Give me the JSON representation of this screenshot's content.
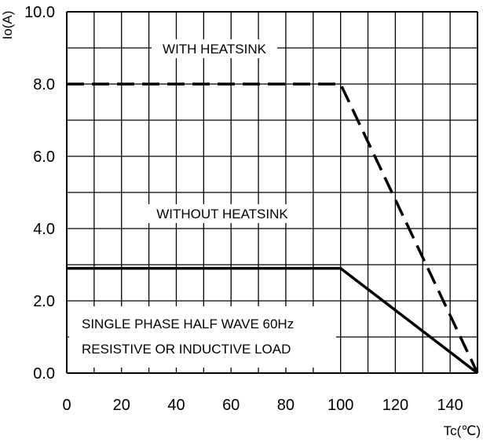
{
  "chart_data": {
    "type": "line",
    "xlabel": "Tc(℃)",
    "ylabel": "Io(A)",
    "xlim": [
      0,
      150
    ],
    "ylim": [
      0,
      10
    ],
    "x_ticks": [
      "0",
      "20",
      "40",
      "60",
      "80",
      "100",
      "120",
      "140"
    ],
    "y_ticks": [
      "0.0",
      "2.0",
      "4.0",
      "6.0",
      "8.0",
      "10.0"
    ],
    "grid": true,
    "series": [
      {
        "name": "WITH HEATSINK",
        "style": "dashed",
        "x": [
          0,
          100,
          150
        ],
        "y": [
          8.0,
          8.0,
          0.0
        ]
      },
      {
        "name": "WITHOUT HEATSINK",
        "style": "solid",
        "x": [
          0,
          100,
          150
        ],
        "y": [
          2.9,
          2.9,
          0.0
        ]
      }
    ],
    "annotations": [
      "SINGLE PHASE HALF WAVE  60Hz",
      "RESISTIVE OR INDUCTIVE LOAD"
    ]
  }
}
